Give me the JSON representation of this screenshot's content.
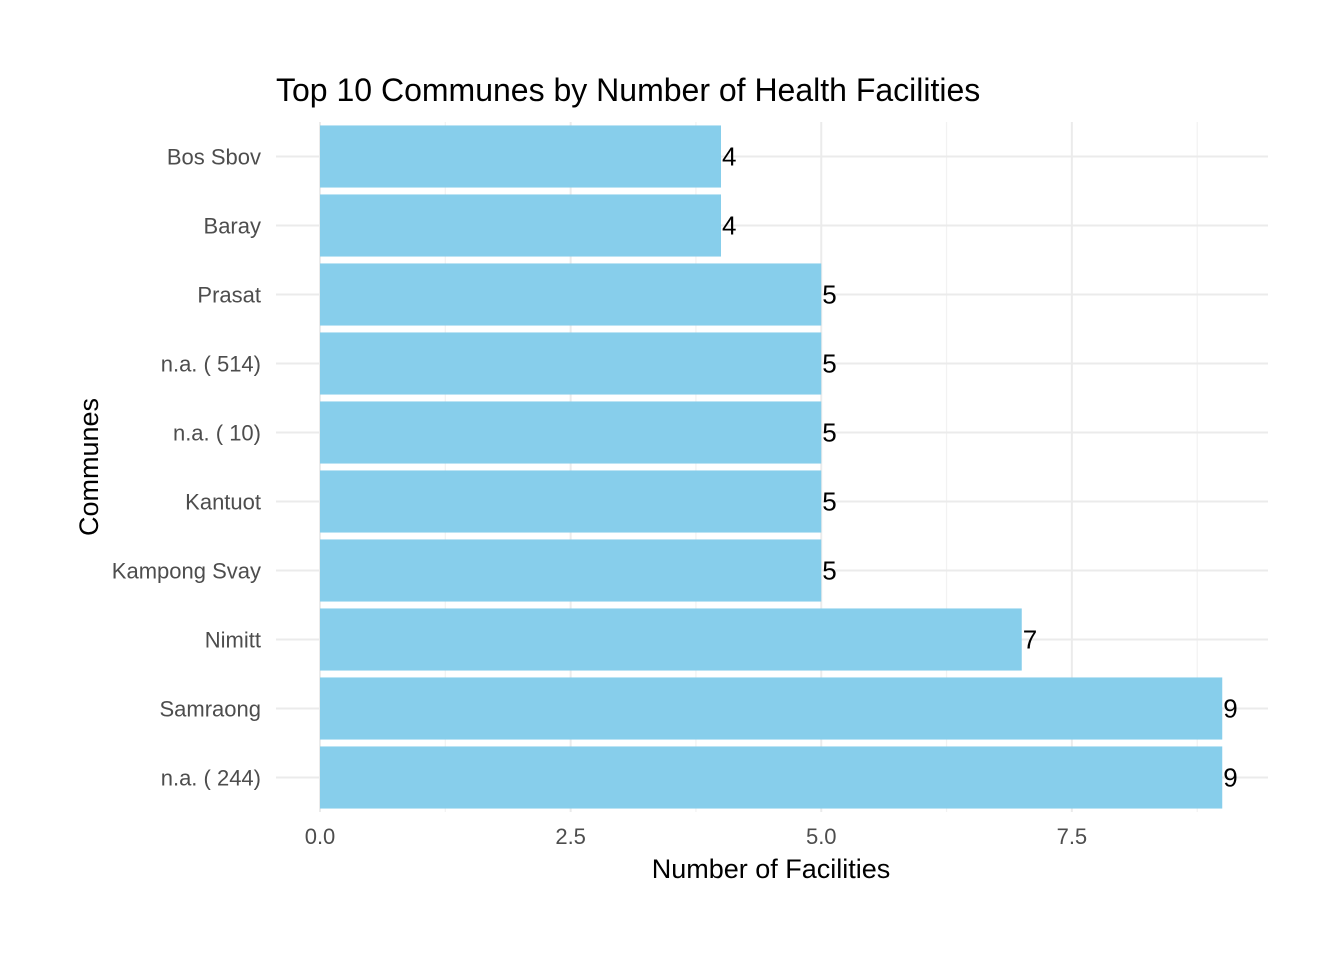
{
  "chart_data": {
    "type": "bar",
    "orientation": "horizontal",
    "title": "Top 10 Communes by Number of Health Facilities",
    "xlabel": "Number of Facilities",
    "ylabel": "Communes",
    "categories": [
      "n.a. ( 244)",
      "Samraong",
      "Nimitt",
      "Kampong Svay",
      "Kantuot",
      "n.a. ( 10)",
      "n.a. ( 514)",
      "Prasat",
      "Baray",
      "Bos Sbov"
    ],
    "values": [
      9,
      9,
      7,
      5,
      5,
      5,
      5,
      5,
      4,
      4
    ],
    "x_ticks": [
      "0.0",
      "2.5",
      "5.0",
      "7.5"
    ],
    "xlim": [
      0,
      9.45
    ],
    "bar_color": "#87ceeb",
    "grid": true,
    "legend": "none"
  }
}
